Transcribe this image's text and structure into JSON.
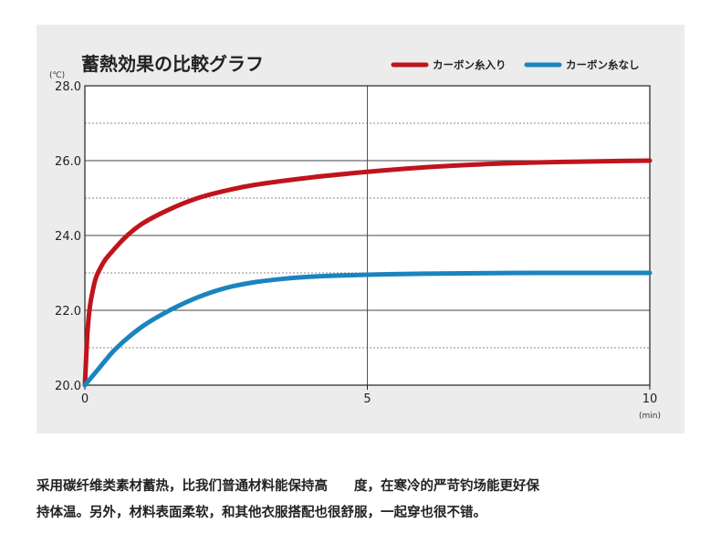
{
  "chart_data": {
    "type": "line",
    "title": "蓄熱効果の比較グラフ",
    "y_unit": "(℃)",
    "x_unit": "(min)",
    "xlim": [
      0,
      10
    ],
    "ylim": [
      20,
      28
    ],
    "x_ticks": [
      0,
      5,
      10
    ],
    "x_tick_labels": [
      "0",
      "5",
      "10"
    ],
    "y_ticks": [
      20,
      22,
      24,
      26,
      28
    ],
    "y_tick_labels": [
      "20.0",
      "22.0",
      "24.0",
      "26.0",
      "28.0"
    ],
    "grid": {
      "vertical_solid_at": [
        5
      ],
      "horizontal_solid_at": [
        22,
        24,
        26
      ],
      "horizontal_dashed_at": [
        21,
        23,
        25,
        27
      ]
    },
    "legend_position": "top-right",
    "series": [
      {
        "name": "カーボン糸入り",
        "color": "#c0141c",
        "x": [
          0,
          0.05,
          0.15,
          0.3,
          0.5,
          0.75,
          1.0,
          1.5,
          2.0,
          2.5,
          3.0,
          4.0,
          5.0,
          6.0,
          7.0,
          8.0,
          9.0,
          10.0
        ],
        "y": [
          20.0,
          21.5,
          22.6,
          23.2,
          23.6,
          24.0,
          24.3,
          24.7,
          25.0,
          25.2,
          25.35,
          25.55,
          25.7,
          25.82,
          25.9,
          25.95,
          25.98,
          26.0
        ]
      },
      {
        "name": "カーボン糸なし",
        "color": "#1a84bf",
        "x": [
          0,
          0.25,
          0.5,
          1.0,
          1.5,
          2.0,
          2.5,
          3.0,
          3.5,
          4.0,
          5.0,
          6.0,
          7.0,
          8.0,
          9.0,
          10.0
        ],
        "y": [
          20.0,
          20.45,
          20.9,
          21.55,
          22.0,
          22.35,
          22.6,
          22.75,
          22.84,
          22.9,
          22.95,
          22.98,
          22.99,
          23.0,
          23.0,
          23.0
        ]
      }
    ]
  },
  "caption": {
    "line1": "采用碳纤维类素材蓄热，比我们普通材料能保持高　　度，在寒冷的严苛钓场能更好保",
    "line2": "持体温。另外，材料表面柔软，和其他衣服搭配也很舒服，一起穿也很不错。"
  }
}
